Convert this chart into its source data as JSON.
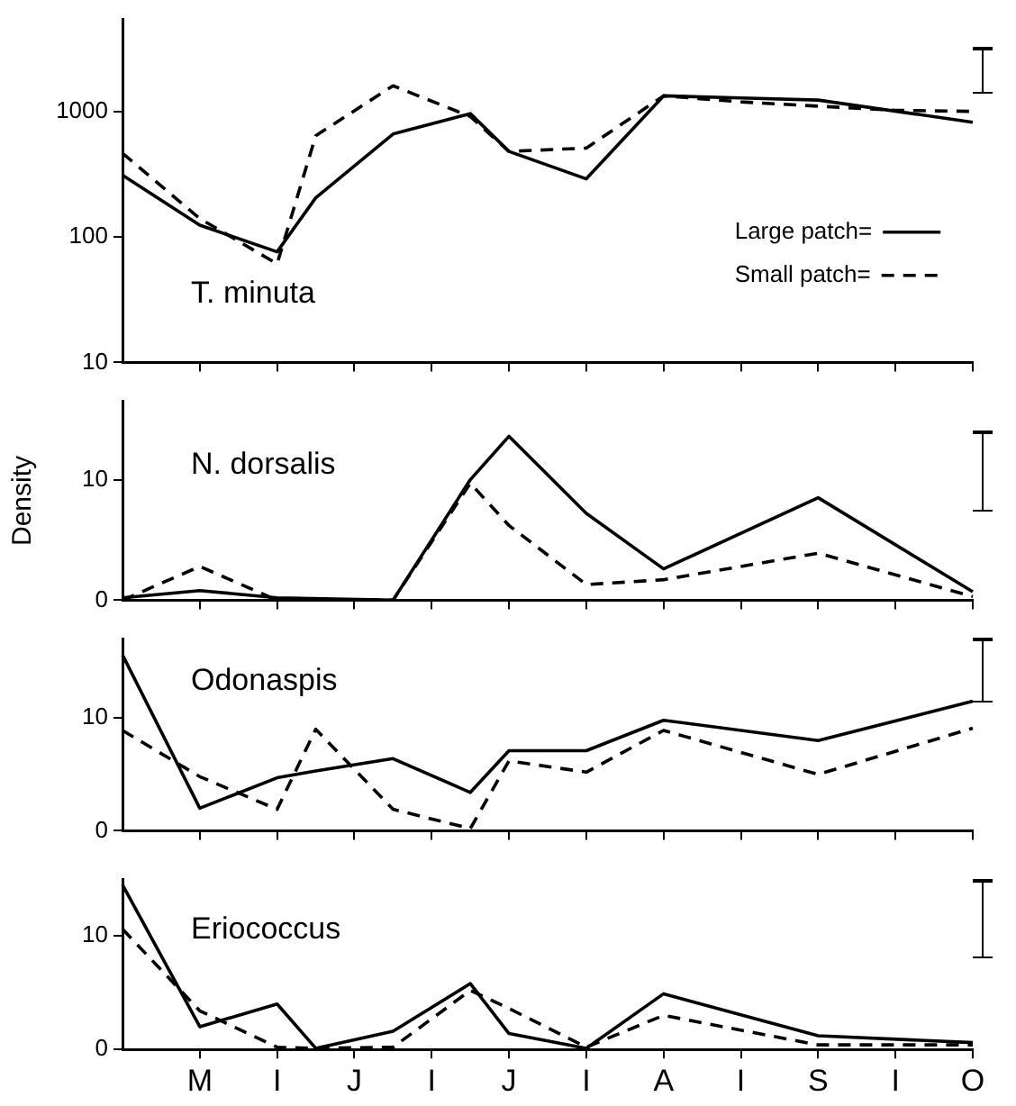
{
  "chart_data": [
    {
      "type": "line",
      "title": "T. minuta",
      "log": "y",
      "ylim": [
        10,
        5400
      ],
      "yticks": [
        10,
        100,
        1000
      ],
      "tick_labels": "y",
      "grid": false,
      "marker": "none",
      "legend": "bottom right",
      "categories": [
        null,
        null,
        null,
        null,
        null,
        null,
        null,
        null,
        null,
        null,
        null,
        null,
        null,
        null,
        null,
        null,
        null,
        null,
        null,
        null,
        null,
        null,
        null
      ],
      "series": [
        {
          "name": "Large patch=",
          "color": "#000000",
          "line_style": "solid",
          "values": [
            310,
            null,
            124,
            null,
            76,
            205,
            null,
            660,
            null,
            960,
            480,
            null,
            290,
            null,
            1330,
            null,
            1280,
            null,
            1230,
            null,
            null,
            null,
            820
          ]
        },
        {
          "name": "Small patch=",
          "color": "#000000",
          "line_style": "dashed",
          "values": [
            465,
            null,
            140,
            null,
            61,
            640,
            null,
            1600,
            null,
            910,
            480,
            null,
            510,
            null,
            1330,
            null,
            1190,
            null,
            1100,
            null,
            1020,
            null,
            1000
          ]
        }
      ]
    },
    {
      "type": "line",
      "title": "N. dorsalis",
      "ylabel": "Density",
      "ylim": [
        0,
        16.5
      ],
      "yticks": [
        0,
        10
      ],
      "tick_labels": "y",
      "grid": false,
      "marker": "none",
      "categories": [
        null,
        null,
        null,
        null,
        null,
        null,
        null,
        null,
        null,
        null,
        null,
        null,
        null,
        null,
        null,
        null,
        null,
        null,
        null,
        null,
        null,
        null,
        null
      ],
      "series": [
        {
          "color": "#000000",
          "line_style": "solid",
          "values": [
            0.2,
            null,
            0.8,
            null,
            0.2,
            null,
            null,
            0,
            null,
            10,
            13.6,
            null,
            7.2,
            null,
            2.6,
            null,
            null,
            null,
            8.5,
            null,
            null,
            null,
            0.7
          ]
        },
        {
          "color": "#000000",
          "line_style": "dashed",
          "values": [
            0,
            null,
            2.8,
            null,
            0,
            null,
            null,
            0,
            null,
            9.7,
            6.2,
            null,
            1.3,
            null,
            1.7,
            null,
            null,
            null,
            3.9,
            null,
            null,
            null,
            0.3
          ]
        }
      ]
    },
    {
      "type": "line",
      "title": "Odonaspis",
      "ylim": [
        0,
        17
      ],
      "yticks": [
        0,
        10
      ],
      "tick_labels": "y",
      "grid": false,
      "marker": "none",
      "categories": [
        null,
        null,
        null,
        null,
        null,
        null,
        null,
        null,
        null,
        null,
        null,
        null,
        null,
        null,
        null,
        null,
        null,
        null,
        null,
        null,
        null,
        null,
        null
      ],
      "series": [
        {
          "color": "#000000",
          "line_style": "solid",
          "values": [
            15.6,
            null,
            2.0,
            null,
            4.7,
            5.3,
            null,
            6.4,
            null,
            3.4,
            7.1,
            null,
            7.1,
            null,
            9.8,
            null,
            null,
            null,
            8.0,
            null,
            null,
            null,
            11.5
          ]
        },
        {
          "color": "#000000",
          "line_style": "dashed",
          "values": [
            8.9,
            null,
            4.8,
            null,
            1.9,
            9.0,
            null,
            1.9,
            null,
            0.2,
            6.2,
            null,
            5.2,
            null,
            8.9,
            null,
            null,
            null,
            5.0,
            null,
            null,
            null,
            9.1
          ]
        }
      ]
    },
    {
      "type": "line",
      "title": "Eriococcus",
      "ylim": [
        0,
        15
      ],
      "yticks": [
        0,
        10
      ],
      "grid": false,
      "marker": "none",
      "categories": [
        null,
        null,
        "M",
        null,
        "I",
        null,
        "J",
        null,
        "I",
        null,
        "J",
        null,
        "I",
        null,
        "A",
        null,
        "I",
        null,
        "S",
        null,
        "I",
        null,
        "O"
      ],
      "series": [
        {
          "color": "#000000",
          "line_style": "solid",
          "values": [
            14.5,
            null,
            2.0,
            null,
            4.0,
            0.1,
            null,
            1.6,
            null,
            5.8,
            1.4,
            null,
            0.1,
            null,
            4.9,
            null,
            null,
            null,
            1.2,
            null,
            null,
            null,
            0.6
          ]
        },
        {
          "color": "#000000",
          "line_style": "dashed",
          "values": [
            10.6,
            null,
            3.4,
            null,
            0.2,
            0.1,
            null,
            0.2,
            null,
            5.2,
            3.6,
            null,
            0.2,
            null,
            3.0,
            null,
            null,
            null,
            0.4,
            null,
            null,
            null,
            0.4
          ]
        }
      ]
    }
  ]
}
